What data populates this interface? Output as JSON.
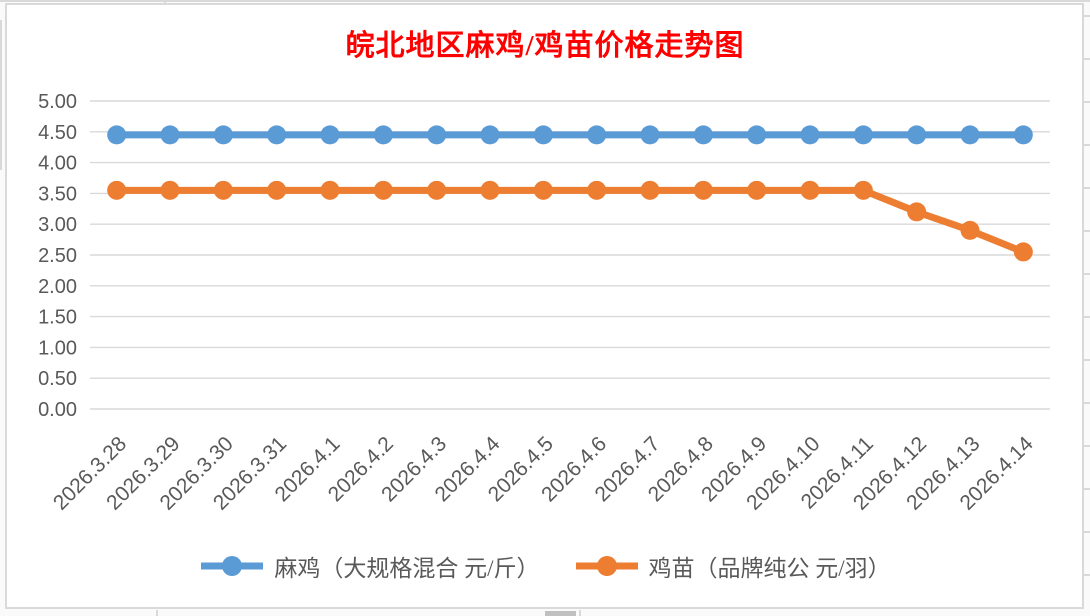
{
  "chart_data": {
    "type": "line",
    "title": "皖北地区麻鸡/鸡苗价格走势图",
    "title_color": "#ff0000",
    "categories": [
      "2026.3.28",
      "2026.3.29",
      "2026.3.30",
      "2026.3.31",
      "2026.4.1",
      "2026.4.2",
      "2026.4.3",
      "2026.4.4",
      "2026.4.5",
      "2026.4.6",
      "2026.4.7",
      "2026.4.8",
      "2026.4.9",
      "2026.4.10",
      "2026.4.11",
      "2026.4.12",
      "2026.4.13",
      "2026.4.14"
    ],
    "series": [
      {
        "name": "麻鸡（大规格混合 元/斤）",
        "color": "#5b9bd5",
        "values": [
          4.45,
          4.45,
          4.45,
          4.45,
          4.45,
          4.45,
          4.45,
          4.45,
          4.45,
          4.45,
          4.45,
          4.45,
          4.45,
          4.45,
          4.45,
          4.45,
          4.45,
          4.45
        ]
      },
      {
        "name": "鸡苗（品牌纯公 元/羽）",
        "color": "#ed7d31",
        "values": [
          3.55,
          3.55,
          3.55,
          3.55,
          3.55,
          3.55,
          3.55,
          3.55,
          3.55,
          3.55,
          3.55,
          3.55,
          3.55,
          3.55,
          3.55,
          3.2,
          2.9,
          2.55
        ]
      }
    ],
    "ylim": [
      0,
      5
    ],
    "y_ticks": [
      "0.00",
      "0.50",
      "1.00",
      "1.50",
      "2.00",
      "2.50",
      "3.00",
      "3.50",
      "4.00",
      "4.50",
      "5.00"
    ],
    "xlabel": "",
    "ylabel": "",
    "grid": true,
    "legend_position": "bottom",
    "x_label_rotation_deg": 45,
    "gridline_color": "#d9d9d9",
    "axis_text_color": "#595959",
    "frame_border_color": "#d9d9d9"
  }
}
